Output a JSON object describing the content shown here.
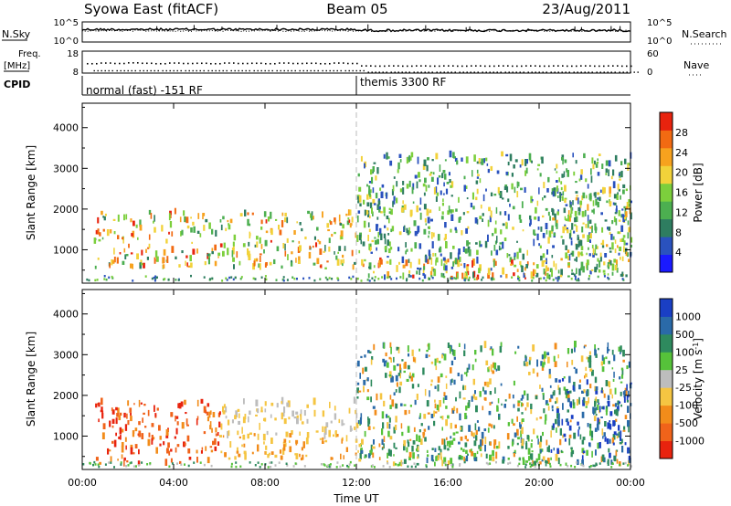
{
  "header": {
    "station": "Syowa East (fitACF)",
    "beam": "Beam 05",
    "date": "23/Aug/2011"
  },
  "chart_data": [
    {
      "type": "line",
      "name": "noise-panel",
      "left_label": "N.Sky",
      "right_label": "N.Search",
      "left_ticks": [
        "10^5",
        "10^0"
      ],
      "right_ticks": [
        "10^5",
        "10^0"
      ],
      "colors": {
        "line": "#000000"
      }
    },
    {
      "type": "scatter",
      "name": "frequency-panel",
      "left_label_top": "Freq.",
      "left_label_bottom": "[MHz]",
      "right_label": "Nave",
      "left_ticks": [
        "18",
        "8"
      ],
      "right_ticks": [
        "60",
        "0"
      ],
      "freq_dots": [
        {
          "t": 0.2,
          "v": 12.6
        },
        {
          "t": 0.8,
          "v": 12.9
        },
        {
          "t": 1.4,
          "v": 12.7
        },
        {
          "t": 2.0,
          "v": 13.0
        },
        {
          "t": 2.6,
          "v": 12.8
        },
        {
          "t": 3.2,
          "v": 12.6
        },
        {
          "t": 3.8,
          "v": 12.9
        },
        {
          "t": 4.4,
          "v": 12.7
        },
        {
          "t": 5.0,
          "v": 12.8
        },
        {
          "t": 5.6,
          "v": 12.6
        },
        {
          "t": 6.2,
          "v": 12.9
        },
        {
          "t": 6.8,
          "v": 12.7
        },
        {
          "t": 7.4,
          "v": 12.8
        },
        {
          "t": 8.0,
          "v": 12.6
        },
        {
          "t": 8.6,
          "v": 12.9
        },
        {
          "t": 9.2,
          "v": 12.7
        },
        {
          "t": 9.8,
          "v": 12.8
        },
        {
          "t": 10.4,
          "v": 12.6
        },
        {
          "t": 11.0,
          "v": 12.9
        },
        {
          "t": 11.6,
          "v": 12.7
        },
        {
          "t": 12.2,
          "v": 11.6
        },
        {
          "t": 12.8,
          "v": 11.5
        },
        {
          "t": 13.4,
          "v": 11.6
        },
        {
          "t": 14.0,
          "v": 11.5
        },
        {
          "t": 14.6,
          "v": 11.6
        },
        {
          "t": 15.2,
          "v": 11.5
        },
        {
          "t": 15.8,
          "v": 11.6
        },
        {
          "t": 16.4,
          "v": 11.5
        },
        {
          "t": 17.0,
          "v": 11.6
        },
        {
          "t": 17.6,
          "v": 11.5
        },
        {
          "t": 18.2,
          "v": 11.6
        },
        {
          "t": 18.8,
          "v": 11.5
        },
        {
          "t": 19.4,
          "v": 11.6
        },
        {
          "t": 20.0,
          "v": 11.5
        },
        {
          "t": 20.6,
          "v": 11.6
        },
        {
          "t": 21.2,
          "v": 11.5
        },
        {
          "t": 21.8,
          "v": 11.6
        },
        {
          "t": 22.4,
          "v": 11.5
        },
        {
          "t": 23.0,
          "v": 11.6
        },
        {
          "t": 23.6,
          "v": 11.5
        }
      ],
      "nave_dots": [
        {
          "t": 0.5,
          "v": 8
        },
        {
          "t": 1.5,
          "v": 8
        },
        {
          "t": 2.5,
          "v": 8
        },
        {
          "t": 3.5,
          "v": 8
        },
        {
          "t": 4.5,
          "v": 8
        },
        {
          "t": 5.5,
          "v": 8
        },
        {
          "t": 6.5,
          "v": 8
        },
        {
          "t": 7.5,
          "v": 8
        },
        {
          "t": 8.5,
          "v": 8
        },
        {
          "t": 9.5,
          "v": 8
        },
        {
          "t": 10.5,
          "v": 8
        },
        {
          "t": 11.5,
          "v": 8
        },
        {
          "t": 12.5,
          "v": 4
        },
        {
          "t": 13.5,
          "v": 4
        },
        {
          "t": 14.5,
          "v": 4
        },
        {
          "t": 15.5,
          "v": 4
        },
        {
          "t": 16.5,
          "v": 4
        },
        {
          "t": 17.5,
          "v": 4
        },
        {
          "t": 18.5,
          "v": 4
        },
        {
          "t": 19.5,
          "v": 4
        },
        {
          "t": 20.5,
          "v": 4
        },
        {
          "t": 21.5,
          "v": 4
        },
        {
          "t": 22.5,
          "v": 4
        },
        {
          "t": 23.5,
          "v": 4
        }
      ],
      "colors": {
        "dots": "#000000"
      }
    },
    {
      "type": "table",
      "name": "cpid-panel",
      "label": "CPID",
      "segments": [
        {
          "start": 0,
          "end": 12,
          "text": "normal (fast) -151 RF"
        },
        {
          "start": 12,
          "end": 24,
          "text": "themis 3300 RF"
        }
      ]
    },
    {
      "type": "heatmap",
      "name": "power-panel",
      "ylabel": "Slant Range [km]",
      "ylim": [
        180,
        4600
      ],
      "y_ticks": [
        1000,
        2000,
        3000,
        4000
      ],
      "xlim": [
        0,
        24
      ],
      "colorbar": {
        "label": "Power [dB]",
        "ticks": [
          4,
          8,
          12,
          16,
          20,
          24,
          28
        ],
        "range": [
          0,
          32
        ],
        "colors": [
          "#1a1aff",
          "#2a52be",
          "#2e7d60",
          "#4caf50",
          "#7ccf3c",
          "#f2d23a",
          "#f7a21e",
          "#f26a12",
          "#e8230e"
        ]
      },
      "regions": [
        {
          "t0": 0.5,
          "t1": 12.0,
          "r0": 500,
          "r1": 1900,
          "v0": 8,
          "v1": 30
        },
        {
          "t0": 12.0,
          "t1": 13.5,
          "r0": 900,
          "r1": 2200,
          "v0": 8,
          "v1": 20
        },
        {
          "t0": 12.2,
          "t1": 20.5,
          "r0": 250,
          "r1": 700,
          "v0": 16,
          "v1": 30
        },
        {
          "t0": 12.0,
          "t1": 24.0,
          "r0": 250,
          "r1": 3300,
          "v0": 4,
          "v1": 20
        },
        {
          "t0": 20.5,
          "t1": 24.0,
          "r0": 300,
          "r1": 2500,
          "v0": 6,
          "v1": 24
        }
      ]
    },
    {
      "type": "heatmap",
      "name": "velocity-panel",
      "ylabel": "Slant Range [km]",
      "xlabel": "Time UT",
      "ylim": [
        180,
        4600
      ],
      "y_ticks": [
        1000,
        2000,
        3000,
        4000
      ],
      "xlim": [
        0,
        24
      ],
      "x_ticks": [
        "00:00",
        "04:00",
        "08:00",
        "12:00",
        "16:00",
        "20:00",
        "00:00"
      ],
      "colorbar": {
        "label": "Velocity [m s^-1]",
        "ticks": [
          "1000",
          "500",
          "100",
          "25",
          "-25",
          "-100",
          "-500",
          "-1000"
        ],
        "colors": [
          "#1a3fc4",
          "#2a6aa8",
          "#2e8a5e",
          "#56c23a",
          "#bdbdbd",
          "#f5c542",
          "#f28c1a",
          "#f0631a",
          "#e8230e"
        ]
      },
      "regions": [
        {
          "t0": 0.5,
          "t1": 6.0,
          "r0": 250,
          "r1": 1800,
          "c": [
            6,
            7,
            8
          ]
        },
        {
          "t0": 6.0,
          "t1": 12.0,
          "r0": 900,
          "r1": 1800,
          "c": [
            4,
            5
          ]
        },
        {
          "t0": 6.0,
          "t1": 12.0,
          "r0": 400,
          "r1": 1000,
          "c": [
            5,
            6
          ]
        },
        {
          "t0": 12.0,
          "t1": 20.5,
          "r0": 250,
          "r1": 800,
          "c": [
            2,
            3
          ]
        },
        {
          "t0": 12.0,
          "t1": 24.0,
          "r0": 250,
          "r1": 3200,
          "c": [
            1,
            2,
            3,
            5,
            6
          ]
        },
        {
          "t0": 20.5,
          "t1": 24.0,
          "r0": 300,
          "r1": 2400,
          "c": [
            0,
            1,
            2
          ]
        }
      ]
    }
  ]
}
